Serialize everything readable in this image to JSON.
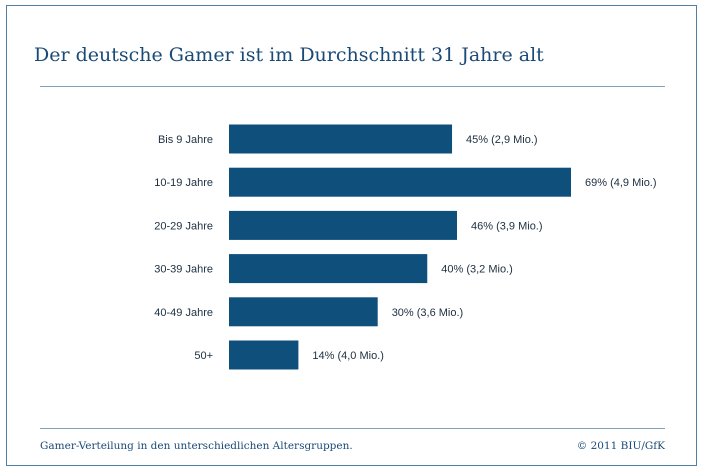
{
  "title": "Der deutsche Gamer ist im Durchschnitt 31 Jahre alt",
  "footer": {
    "caption": "Gamer-Verteilung in den unterschiedlichen Altersgruppen.",
    "source": "© 2011 BIU/GfK"
  },
  "colors": {
    "bar": "#0f4f7c",
    "accent": "#1a4a76",
    "rule": "#7fa3bf"
  },
  "chart_data": {
    "type": "bar",
    "orientation": "horizontal",
    "categories": [
      "Bis 9 Jahre",
      "10-19 Jahre",
      "20-29 Jahre",
      "30-39 Jahre",
      "40-49 Jahre",
      "50+"
    ],
    "values": [
      45,
      69,
      46,
      40,
      30,
      14
    ],
    "data_labels": [
      "45% (2,9 Mio.)",
      "69% (4,9 Mio.)",
      "46% (3,9 Mio.)",
      "40% (3,2 Mio.)",
      "30% (3,6 Mio.)",
      "14% (4,0 Mio.)"
    ],
    "xlim": [
      0,
      69
    ],
    "grid": false,
    "legend": "none"
  }
}
